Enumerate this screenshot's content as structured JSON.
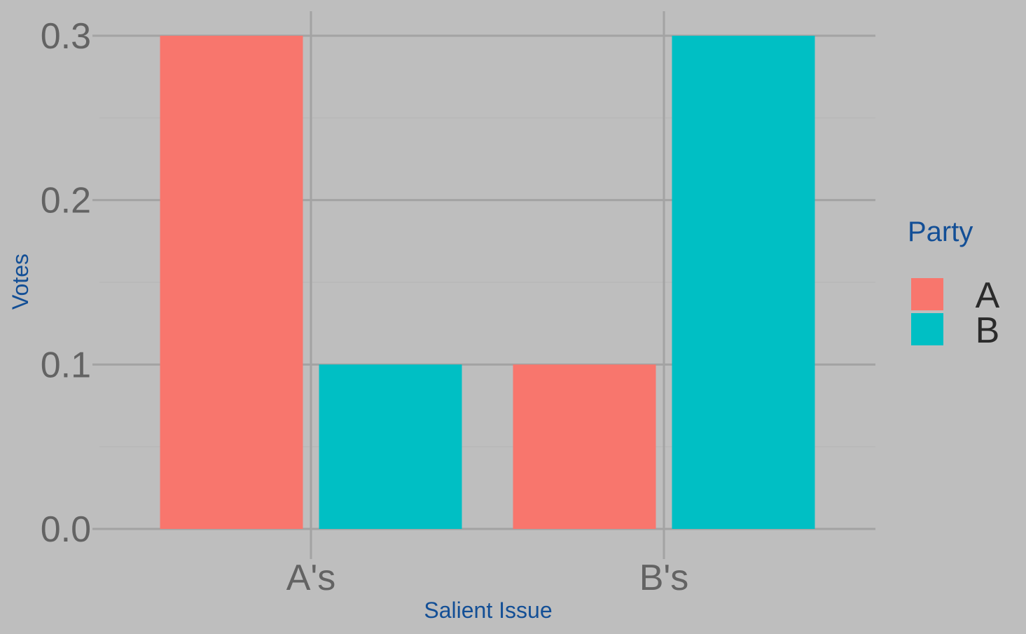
{
  "chart_data": {
    "type": "bar",
    "categories": [
      "A's",
      "B's"
    ],
    "series": [
      {
        "name": "A",
        "values": [
          0.3,
          0.1
        ]
      },
      {
        "name": "B",
        "values": [
          0.1,
          0.3
        ]
      }
    ],
    "xlabel": "Salient Issue",
    "ylabel": "Votes",
    "ylim": [
      0,
      0.3
    ],
    "yticks": [
      "0.0",
      "0.1",
      "0.2",
      "0.3"
    ],
    "grid": true,
    "legend": {
      "title": "Party",
      "placement": "right"
    }
  },
  "colors": {
    "background": "#bebebe",
    "series_A": "#f8766d",
    "series_B": "#00bfc4",
    "grid_major": "#a3a3a3",
    "grid_minor": "#b6b6b6",
    "tick_text": "#636363",
    "title_text": "#134f96"
  }
}
